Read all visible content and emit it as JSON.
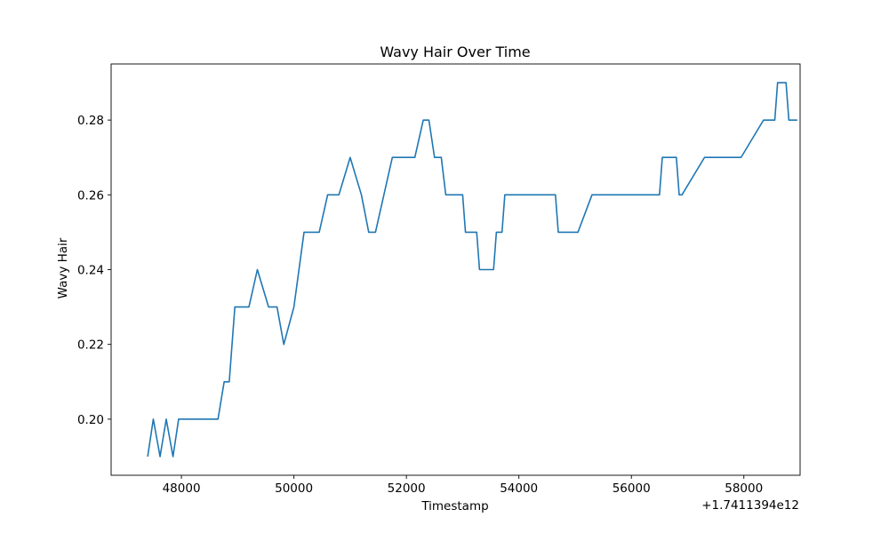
{
  "chart_data": {
    "type": "line",
    "title": "Wavy Hair Over Time",
    "xlabel": "Timestamp",
    "ylabel": "Wavy Hair",
    "x_offset_label": "+1.7411394e12",
    "xlim": [
      46750,
      59000
    ],
    "ylim": [
      0.185,
      0.295
    ],
    "xticks": [
      48000,
      50000,
      52000,
      54000,
      56000,
      58000
    ],
    "xtick_labels": [
      "48000",
      "50000",
      "52000",
      "54000",
      "56000",
      "58000"
    ],
    "yticks": [
      0.2,
      0.22,
      0.24,
      0.26,
      0.28
    ],
    "ytick_labels": [
      "0.20",
      "0.22",
      "0.24",
      "0.26",
      "0.28"
    ],
    "grid": false,
    "series": [
      {
        "color": "#1f77b4",
        "x": [
          47400,
          47500,
          47620,
          47730,
          47850,
          47950,
          48000,
          48650,
          48760,
          48850,
          48950,
          49010,
          49200,
          49350,
          49550,
          49700,
          49820,
          50000,
          50180,
          50450,
          50600,
          50800,
          51000,
          51200,
          51330,
          51450,
          51750,
          52150,
          52300,
          52400,
          52500,
          52620,
          52700,
          53000,
          53050,
          53250,
          53300,
          53550,
          53600,
          53700,
          53750,
          54650,
          54700,
          55050,
          55300,
          56500,
          56550,
          56800,
          56850,
          56900,
          57300,
          57950,
          58350,
          58550,
          58600,
          58750,
          58800,
          58950
        ],
        "y": [
          0.19,
          0.2,
          0.19,
          0.2,
          0.19,
          0.2,
          0.2,
          0.2,
          0.21,
          0.21,
          0.23,
          0.23,
          0.23,
          0.24,
          0.23,
          0.23,
          0.22,
          0.23,
          0.25,
          0.25,
          0.26,
          0.26,
          0.27,
          0.26,
          0.25,
          0.25,
          0.27,
          0.27,
          0.28,
          0.28,
          0.27,
          0.27,
          0.26,
          0.26,
          0.25,
          0.25,
          0.24,
          0.24,
          0.25,
          0.25,
          0.26,
          0.26,
          0.25,
          0.25,
          0.26,
          0.26,
          0.27,
          0.27,
          0.26,
          0.26,
          0.27,
          0.27,
          0.28,
          0.28,
          0.29,
          0.29,
          0.28,
          0.28
        ]
      }
    ]
  }
}
